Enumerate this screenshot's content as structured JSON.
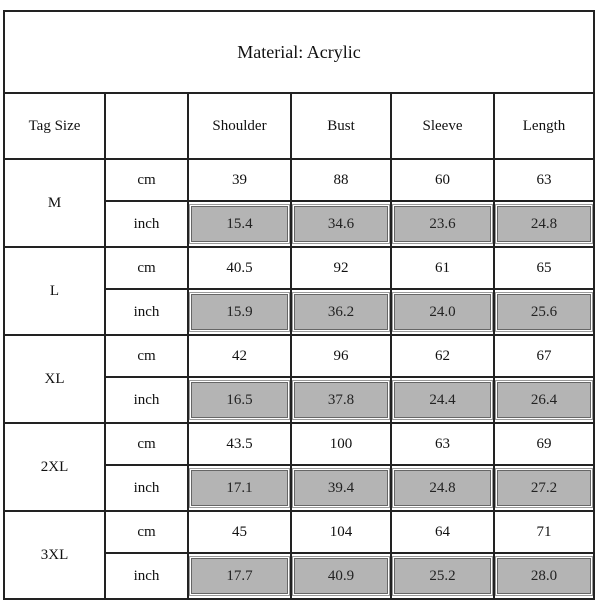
{
  "title": "Material: Acrylic",
  "headers": [
    "Tag Size",
    "",
    "Shoulder",
    "Bust",
    "Sleeve",
    "Length"
  ],
  "units": {
    "cm": "cm",
    "inch": "inch"
  },
  "colors": {
    "inch_cell_bg": "#b4b4b4",
    "border": "#222222"
  },
  "rows": [
    {
      "size": "M",
      "cm": [
        "39",
        "88",
        "60",
        "63"
      ],
      "inch": [
        "15.4",
        "34.6",
        "23.6",
        "24.8"
      ]
    },
    {
      "size": "L",
      "cm": [
        "40.5",
        "92",
        "61",
        "65"
      ],
      "inch": [
        "15.9",
        "36.2",
        "24.0",
        "25.6"
      ]
    },
    {
      "size": "XL",
      "cm": [
        "42",
        "96",
        "62",
        "67"
      ],
      "inch": [
        "16.5",
        "37.8",
        "24.4",
        "26.4"
      ]
    },
    {
      "size": "2XL",
      "cm": [
        "43.5",
        "100",
        "63",
        "69"
      ],
      "inch": [
        "17.1",
        "39.4",
        "24.8",
        "27.2"
      ]
    },
    {
      "size": "3XL",
      "cm": [
        "45",
        "104",
        "64",
        "71"
      ],
      "inch": [
        "17.7",
        "40.9",
        "25.2",
        "28.0"
      ]
    }
  ]
}
